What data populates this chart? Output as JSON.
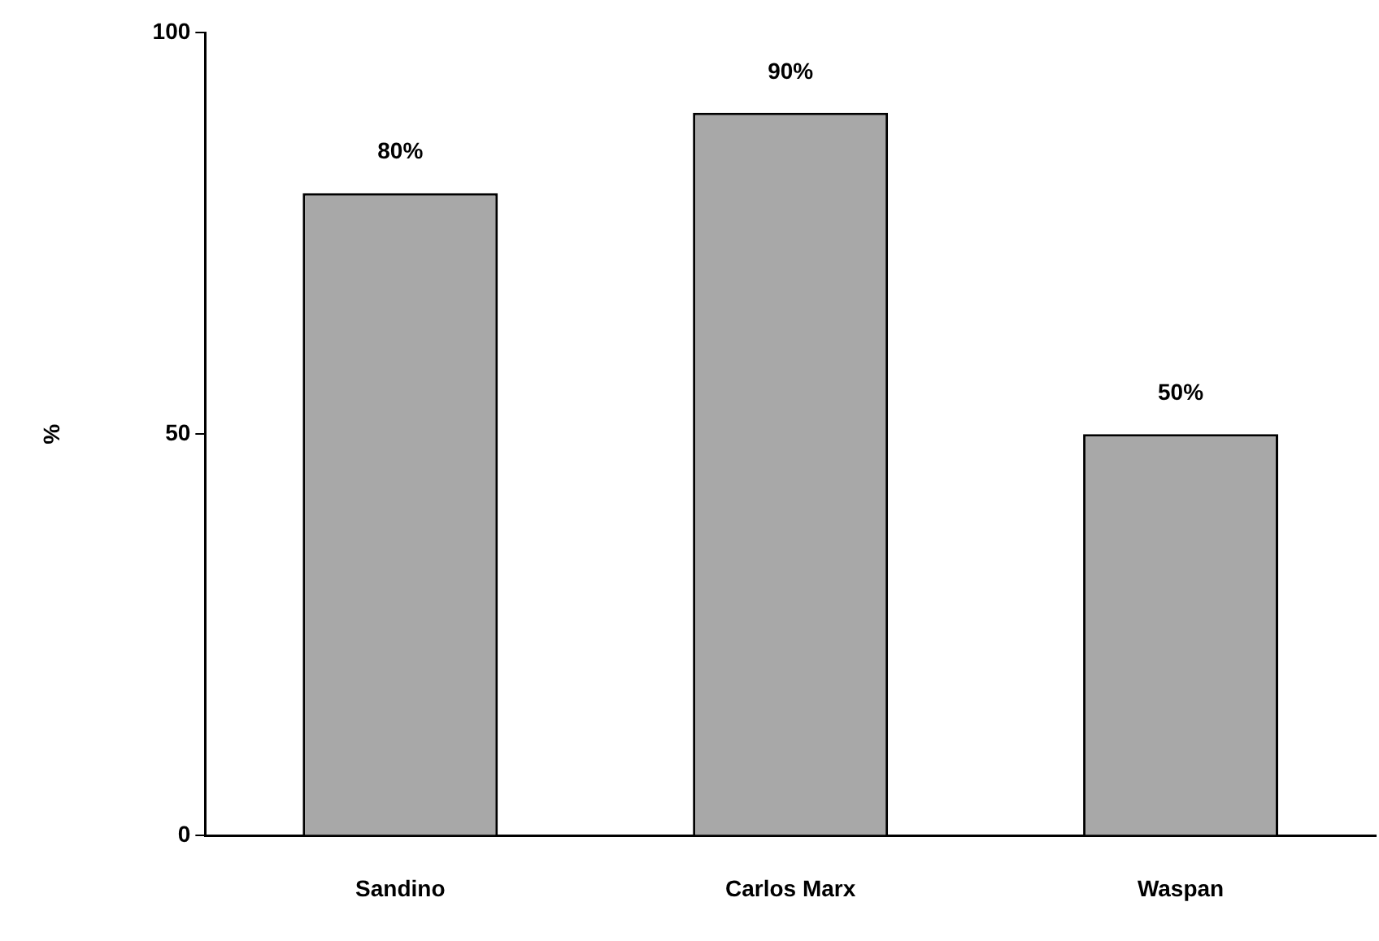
{
  "chart_data": {
    "type": "bar",
    "ylabel": "%",
    "categories": [
      "Sandino",
      "Carlos Marx",
      "Waspan"
    ],
    "values": [
      80,
      90,
      50
    ],
    "value_labels": [
      "80%",
      "90%",
      "50%"
    ],
    "color": "#a8a8a8",
    "ylim": [
      0,
      100
    ],
    "yticks": [
      0,
      50,
      100
    ],
    "grid": false,
    "legend": false
  }
}
